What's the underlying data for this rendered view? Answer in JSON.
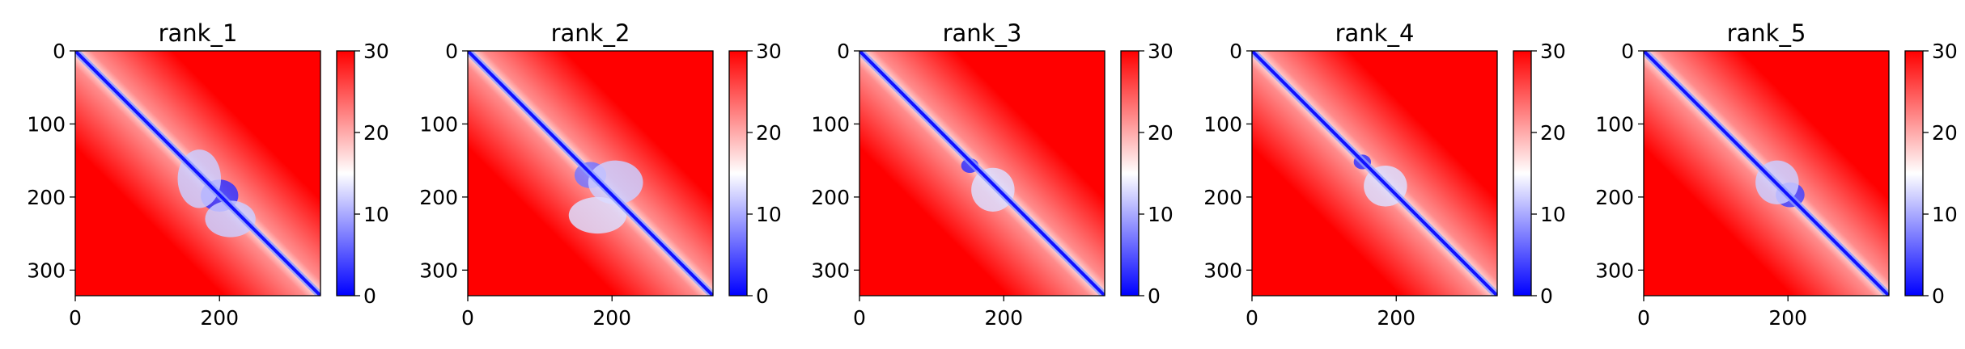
{
  "colors": {
    "low": "#0000ff",
    "mid": "#ffffff",
    "high": "#ff0000",
    "axes": "#000000"
  },
  "chart_data": [
    {
      "type": "heatmap",
      "title": "rank_1",
      "xlim": [
        0,
        340
      ],
      "ylim": [
        335,
        0
      ],
      "xticks": [
        0,
        200
      ],
      "yticks": [
        0,
        100,
        200,
        300
      ],
      "colorbar": {
        "min": 0,
        "max": 30,
        "ticks": [
          0,
          10,
          20,
          30
        ],
        "cmap": "bwr"
      },
      "diagonal_value": 1,
      "features": [
        {
          "x": 200,
          "y": 198,
          "rx": 26,
          "ry": 22,
          "value": 3
        },
        {
          "x": 172,
          "y": 175,
          "rx": 30,
          "ry": 40,
          "value": 12
        },
        {
          "x": 215,
          "y": 230,
          "rx": 35,
          "ry": 25,
          "value": 12
        }
      ]
    },
    {
      "type": "heatmap",
      "title": "rank_2",
      "xlim": [
        0,
        340
      ],
      "ylim": [
        335,
        0
      ],
      "xticks": [
        0,
        200
      ],
      "yticks": [
        0,
        100,
        200,
        300
      ],
      "colorbar": {
        "min": 0,
        "max": 30,
        "ticks": [
          0,
          10,
          20,
          30
        ],
        "cmap": "bwr"
      },
      "diagonal_value": 1,
      "features": [
        {
          "x": 170,
          "y": 170,
          "rx": 22,
          "ry": 18,
          "value": 7
        },
        {
          "x": 205,
          "y": 180,
          "rx": 38,
          "ry": 30,
          "value": 12
        },
        {
          "x": 180,
          "y": 225,
          "rx": 40,
          "ry": 25,
          "value": 13
        }
      ]
    },
    {
      "type": "heatmap",
      "title": "rank_3",
      "xlim": [
        0,
        340
      ],
      "ylim": [
        335,
        0
      ],
      "xticks": [
        0,
        200
      ],
      "yticks": [
        0,
        100,
        200,
        300
      ],
      "colorbar": {
        "min": 0,
        "max": 30,
        "ticks": [
          0,
          10,
          20,
          30
        ],
        "cmap": "bwr"
      },
      "diagonal_value": 1,
      "features": [
        {
          "x": 153,
          "y": 157,
          "rx": 12,
          "ry": 10,
          "value": 3
        },
        {
          "x": 185,
          "y": 190,
          "rx": 30,
          "ry": 30,
          "value": 13
        }
      ]
    },
    {
      "type": "heatmap",
      "title": "rank_4",
      "xlim": [
        0,
        340
      ],
      "ylim": [
        335,
        0
      ],
      "xticks": [
        0,
        200
      ],
      "yticks": [
        0,
        100,
        200,
        300
      ],
      "colorbar": {
        "min": 0,
        "max": 30,
        "ticks": [
          0,
          10,
          20,
          30
        ],
        "cmap": "bwr"
      },
      "diagonal_value": 1,
      "features": [
        {
          "x": 153,
          "y": 152,
          "rx": 12,
          "ry": 10,
          "value": 3
        },
        {
          "x": 185,
          "y": 185,
          "rx": 30,
          "ry": 28,
          "value": 13
        }
      ]
    },
    {
      "type": "heatmap",
      "title": "rank_5",
      "xlim": [
        0,
        340
      ],
      "ylim": [
        335,
        0
      ],
      "xticks": [
        0,
        200
      ],
      "yticks": [
        0,
        100,
        200,
        300
      ],
      "colorbar": {
        "min": 0,
        "max": 30,
        "ticks": [
          0,
          10,
          20,
          30
        ],
        "cmap": "bwr"
      },
      "diagonal_value": 1,
      "features": [
        {
          "x": 203,
          "y": 197,
          "rx": 20,
          "ry": 17,
          "value": 4
        },
        {
          "x": 185,
          "y": 180,
          "rx": 30,
          "ry": 30,
          "value": 12
        }
      ]
    }
  ]
}
